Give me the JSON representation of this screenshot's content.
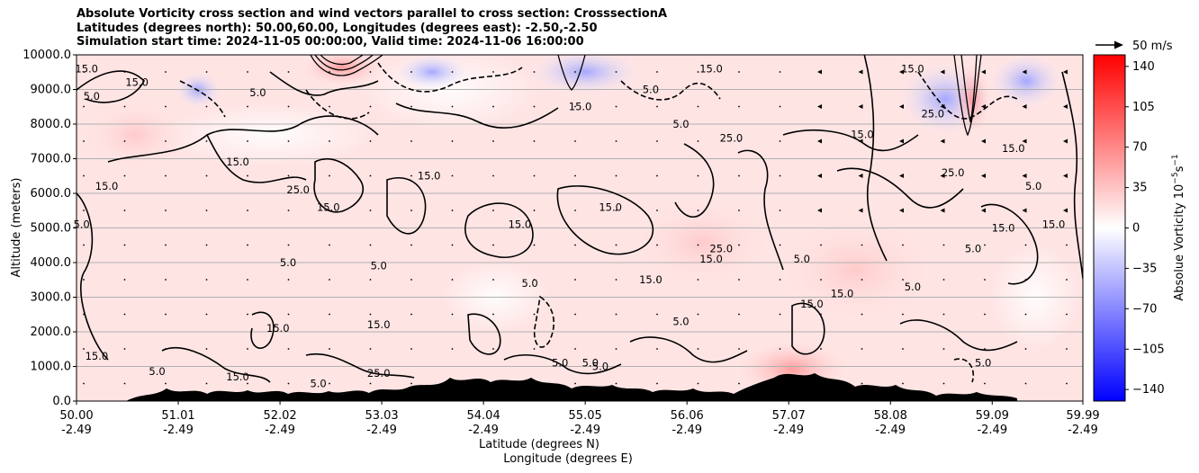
{
  "title": {
    "line1": "Absolute Vorticity cross section and wind vectors parallel to cross section: CrosssectionA",
    "line2": "Latitudes (degrees north): 50.00,60.00, Longitudes (degrees east): -2.50,-2.50",
    "line3": "Simulation start time: 2024-11-05 00:00:00, Valid time: 2024-11-06 16:00:00"
  },
  "quiver_key": {
    "label": "50 m/s"
  },
  "chart_data": {
    "type": "heatmap",
    "title": "Absolute Vorticity cross section and wind vectors parallel to cross section: CrosssectionA",
    "ylabel": "Altitude (meters)",
    "xlabel_lat": "Latitude (degrees N)",
    "xlabel_lon": "Longitude (degrees E)",
    "ylim": [
      0,
      10000
    ],
    "xlim": [
      50.0,
      59.99
    ],
    "grid": "horizontal",
    "y_ticks": [
      "0.0",
      "1000.0",
      "2000.0",
      "3000.0",
      "4000.0",
      "5000.0",
      "6000.0",
      "7000.0",
      "8000.0",
      "9000.0",
      "10000.0"
    ],
    "y_tick_values": [
      0,
      1000,
      2000,
      3000,
      4000,
      5000,
      6000,
      7000,
      8000,
      9000,
      10000
    ],
    "x_tick_values": [
      50.0,
      51.01,
      52.02,
      53.03,
      54.04,
      55.05,
      56.06,
      57.07,
      58.08,
      59.09,
      59.99
    ],
    "x_ticks_lat": [
      "50.00",
      "51.01",
      "52.02",
      "53.03",
      "54.04",
      "55.05",
      "56.06",
      "57.07",
      "58.08",
      "59.09",
      "59.99"
    ],
    "x_ticks_lon": [
      "-2.49",
      "-2.49",
      "-2.49",
      "-2.49",
      "-2.49",
      "-2.49",
      "-2.49",
      "-2.49",
      "-2.49",
      "-2.49",
      "-2.49"
    ],
    "colorbar": {
      "label": "Absolue Vorticity 10",
      "label_exp": "−5",
      "label_unit": "s",
      "label_unit_exp": "−1",
      "range": [
        -150,
        150
      ],
      "ticks": [
        "140",
        "105",
        "70",
        "35",
        "0",
        "−35",
        "−70",
        "−105",
        "−140"
      ],
      "tick_values": [
        140,
        105,
        70,
        35,
        0,
        -35,
        -70,
        -105,
        -140
      ],
      "colormap": "bwr",
      "colors": {
        "low": "#0000ff",
        "mid": "#ffffff",
        "high": "#ff0000"
      }
    },
    "contour_labels": [
      {
        "text": "15.0",
        "x": 50.1,
        "y": 9500
      },
      {
        "text": "5.0",
        "x": 50.15,
        "y": 8700
      },
      {
        "text": "15.0",
        "x": 50.3,
        "y": 6100
      },
      {
        "text": "5.0",
        "x": 50.05,
        "y": 5000
      },
      {
        "text": "15.0",
        "x": 50.6,
        "y": 9100
      },
      {
        "text": "5.0",
        "x": 51.8,
        "y": 8800
      },
      {
        "text": "15.0",
        "x": 51.6,
        "y": 6800
      },
      {
        "text": "25.0",
        "x": 52.2,
        "y": 6000
      },
      {
        "text": "15.0",
        "x": 52.5,
        "y": 5500
      },
      {
        "text": "15.0",
        "x": 53.5,
        "y": 6400
      },
      {
        "text": "5.0",
        "x": 52.1,
        "y": 3900
      },
      {
        "text": "5.0",
        "x": 53.0,
        "y": 3800
      },
      {
        "text": "15.0",
        "x": 52.0,
        "y": 2000
      },
      {
        "text": "15.0",
        "x": 53.0,
        "y": 2100
      },
      {
        "text": "25.0",
        "x": 53.0,
        "y": 700
      },
      {
        "text": "5.0",
        "x": 52.4,
        "y": 400
      },
      {
        "text": "15.0",
        "x": 51.6,
        "y": 600
      },
      {
        "text": "5.0",
        "x": 50.8,
        "y": 750
      },
      {
        "text": "15.0",
        "x": 50.2,
        "y": 1200
      },
      {
        "text": "5.0",
        "x": 54.5,
        "y": 3300
      },
      {
        "text": "15.0",
        "x": 54.4,
        "y": 5000
      },
      {
        "text": "5.0",
        "x": 54.8,
        "y": 1000
      },
      {
        "text": "5.0",
        "x": 55.2,
        "y": 900
      },
      {
        "text": "15.0",
        "x": 55.3,
        "y": 5500
      },
      {
        "text": "15.0",
        "x": 55.0,
        "y": 8400
      },
      {
        "text": "5.0",
        "x": 55.7,
        "y": 8900
      },
      {
        "text": "5.0",
        "x": 56.0,
        "y": 7900
      },
      {
        "text": "15.0",
        "x": 56.3,
        "y": 9500
      },
      {
        "text": "25.0",
        "x": 56.5,
        "y": 7500
      },
      {
        "text": "15.0",
        "x": 56.3,
        "y": 4000
      },
      {
        "text": "25.0",
        "x": 56.4,
        "y": 4300
      },
      {
        "text": "5.0",
        "x": 57.2,
        "y": 4000
      },
      {
        "text": "15.0",
        "x": 57.8,
        "y": 7600
      },
      {
        "text": "15.0",
        "x": 57.6,
        "y": 3000
      },
      {
        "text": "15.0",
        "x": 57.3,
        "y": 2700
      },
      {
        "text": "5.0",
        "x": 58.3,
        "y": 3200
      },
      {
        "text": "15.0",
        "x": 58.3,
        "y": 9500
      },
      {
        "text": "25.0",
        "x": 58.5,
        "y": 8200
      },
      {
        "text": "25.0",
        "x": 58.7,
        "y": 6500
      },
      {
        "text": "15.0",
        "x": 59.3,
        "y": 7200
      },
      {
        "text": "5.0",
        "x": 59.5,
        "y": 6100
      },
      {
        "text": "15.0",
        "x": 59.2,
        "y": 4900
      },
      {
        "text": "5.0",
        "x": 58.9,
        "y": 4300
      },
      {
        "text": "15.0",
        "x": 59.7,
        "y": 5000
      },
      {
        "text": "5.0",
        "x": 59.0,
        "y": 1000
      },
      {
        "text": "15.0",
        "x": 55.7,
        "y": 3400
      },
      {
        "text": "5.0",
        "x": 56.0,
        "y": 2200
      },
      {
        "text": "5.0",
        "x": 55.1,
        "y": 1000
      }
    ]
  }
}
